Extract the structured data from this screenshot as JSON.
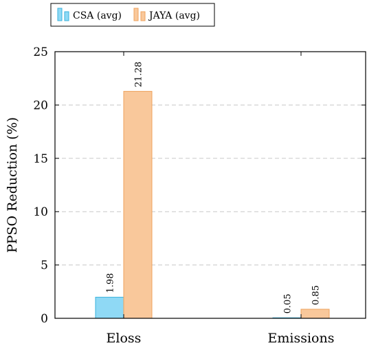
{
  "chart_data": {
    "type": "bar",
    "title": "",
    "xlabel": "",
    "ylabel": "PPSO Reduction (%)",
    "categories": [
      "Eloss",
      "Emissions"
    ],
    "series": [
      {
        "name": "CSA (avg)",
        "values": [
          1.98,
          0.05
        ],
        "labels": [
          "1.98",
          "0.05"
        ],
        "color": "#8fd9f5",
        "stroke": "#3ab2dc"
      },
      {
        "name": "JAYA (avg)",
        "values": [
          21.28,
          0.85
        ],
        "labels": [
          "21.28",
          "0.85"
        ],
        "color": "#f9c89b",
        "stroke": "#eea25c"
      }
    ],
    "ylim": [
      0,
      25
    ],
    "yticks": [
      0,
      5,
      10,
      15,
      20,
      25
    ],
    "grid": "horizontal dashed",
    "legend_position": "top-left"
  }
}
